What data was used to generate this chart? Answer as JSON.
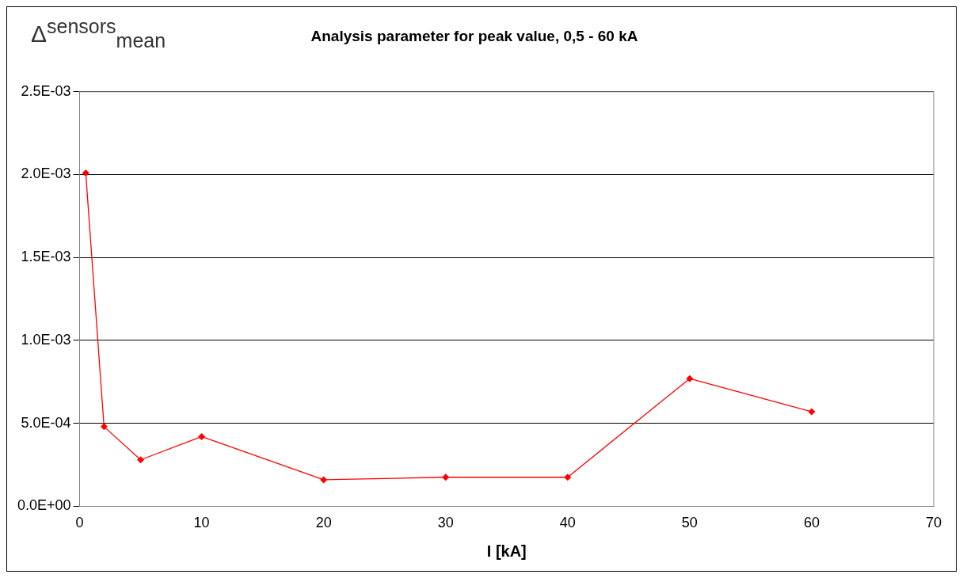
{
  "chart_data": {
    "type": "line",
    "title": "Analysis parameter for peak value, 0,5 - 60 kA",
    "xlabel": "I [kA]",
    "ylabel": "Δ$^{sensors}$$_{mean}$",
    "x": [
      0.5,
      2,
      5,
      10,
      20,
      30,
      40,
      50,
      60
    ],
    "series": [
      {
        "color": "#ff0000",
        "values": [
          0.00201,
          0.00048,
          0.00028,
          0.00042,
          0.00016,
          0.000175,
          0.000175,
          0.00077,
          0.00057
        ]
      }
    ],
    "xlim": [
      0,
      70
    ],
    "xticks": [
      0,
      10,
      20,
      30,
      40,
      50,
      60,
      70
    ],
    "ylim": [
      0,
      0.0025
    ],
    "yticks": [
      {
        "value": 0,
        "label": "0.0E+00"
      },
      {
        "value": 0.0005,
        "label": "5.0E-04"
      },
      {
        "value": 0.001,
        "label": "1.0E-03"
      },
      {
        "value": 0.0015,
        "label": "1.5E-03"
      },
      {
        "value": 0.002,
        "label": "2.0E-03"
      },
      {
        "value": 0.0025,
        "label": "2.5E-03"
      }
    ],
    "grid": "y",
    "legend": false,
    "marker": "diamond",
    "line_style": "solid"
  }
}
